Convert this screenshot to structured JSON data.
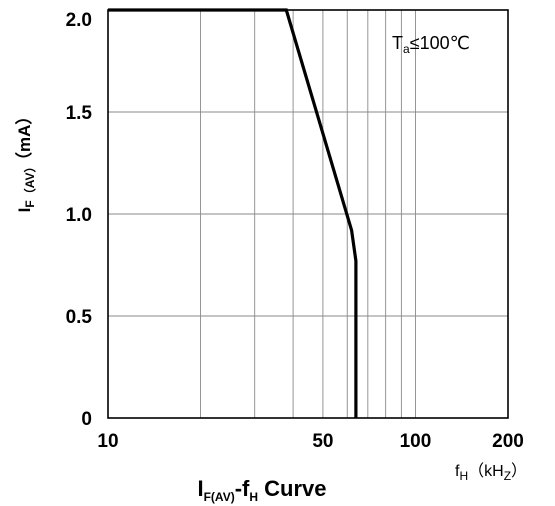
{
  "chart_data": {
    "type": "line",
    "title": {
      "main": "I",
      "sub1": "F(AV)",
      "mid": "-f",
      "sub2": "H",
      "tail": " Curve"
    },
    "xlabel": {
      "main": "f",
      "sub": "H",
      "mid": "（kH",
      "sub2": "Z",
      "tail": "）"
    },
    "ylabel": {
      "main": "I",
      "sub": "F（AV）",
      "tail": "（mA）"
    },
    "annotation": {
      "main": "T",
      "sub": "a",
      "tail": "≤100℃"
    },
    "x_scale": "log",
    "xlim": [
      10,
      200
    ],
    "ylim": [
      0,
      2.0
    ],
    "x_tick_labels": [
      {
        "value": 10,
        "label": "10"
      },
      {
        "value": 50,
        "label": "50"
      },
      {
        "value": 100,
        "label": "100"
      },
      {
        "value": 200,
        "label": "200"
      }
    ],
    "y_tick_labels": [
      {
        "value": 0,
        "label": "0"
      },
      {
        "value": 0.5,
        "label": "0.5"
      },
      {
        "value": 1.0,
        "label": "1.0"
      },
      {
        "value": 1.5,
        "label": "1.5"
      },
      {
        "value": 2.0,
        "label": "2.0"
      }
    ],
    "x_gridlines": [
      20,
      30,
      40,
      50,
      60,
      70,
      80,
      90,
      100
    ],
    "y_gridlines": [
      0.5,
      1.0,
      1.5
    ],
    "grid": true,
    "series": [
      {
        "x": [
          10,
          38,
          62,
          64,
          64
        ],
        "y": [
          2.0,
          2.0,
          0.92,
          0.77,
          0
        ]
      }
    ]
  }
}
